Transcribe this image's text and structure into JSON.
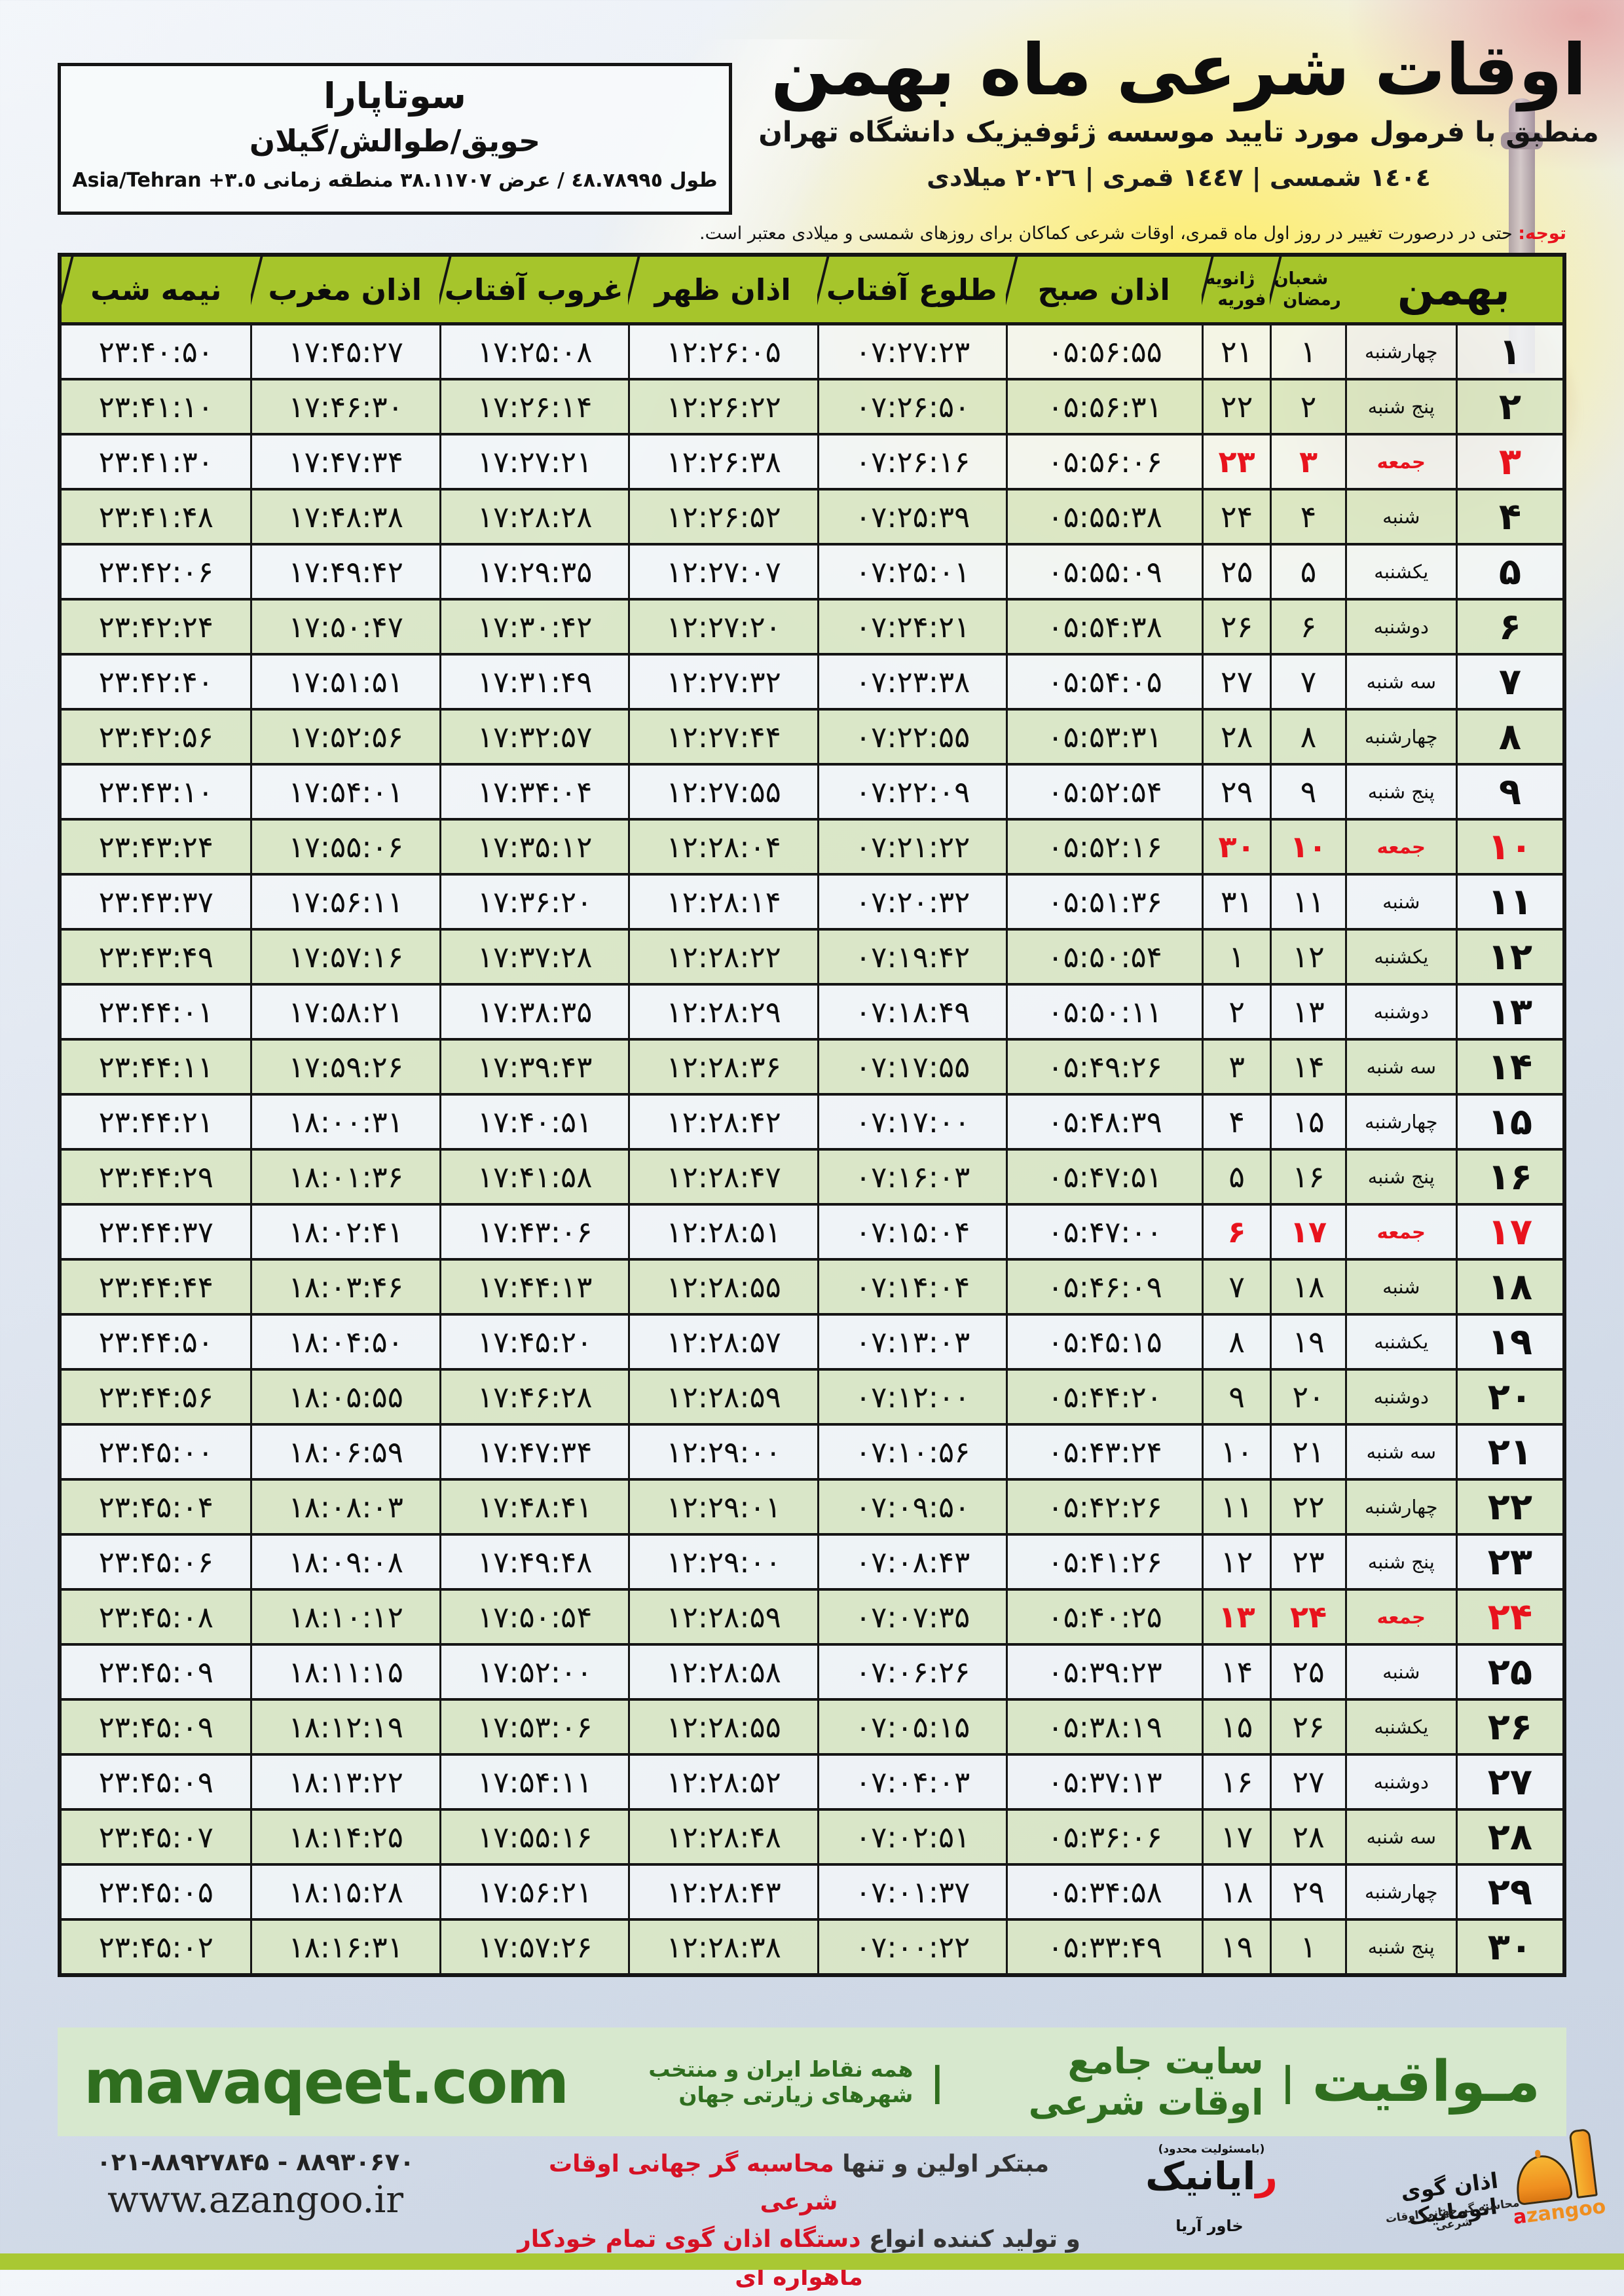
{
  "location": {
    "name": "سوتاپارا",
    "region": "حویق/طوالش/گیلان",
    "coords": "طول ٤٨.٧٨٩٩٥ / عرض ٣٨.١١٧٠٧ منطقه زمانی ٣.٥+ Asia/Tehran"
  },
  "header": {
    "title": "اوقات شرعی ماه بهمن",
    "subtitle": "منطبق با فرمول مورد تایید موسسه ژئوفیزیک دانشگاه تهران",
    "years": "١٤٠٤ شمسی | ١٤٤٧ قمری | ٢٠٢٦ میلادی"
  },
  "note": {
    "label": "توجه:",
    "text": " حتی در درصورت تغییر در روز اول ماه قمری، اوقات شرعی کماکان برای روزهای شمسی و میلادی معتبر است."
  },
  "table": {
    "headers": {
      "month": "بهمن",
      "lunar_top": "شعبان",
      "lunar_bottom": "رمضان",
      "greg_top": "ژانویه",
      "greg_bottom": "فوریه",
      "fajr": "اذان صبح",
      "sunrise": "طلوع آفتاب",
      "dhuhr": "اذان ظهر",
      "sunset": "غروب آفتاب",
      "maghrib": "اذان مغرب",
      "midnight": "نیمه شب"
    },
    "rows": [
      {
        "day": "۱",
        "weekday": "چهارشنبه",
        "lunar": "۱",
        "greg": "۲۱",
        "fajr": "۰۵:۵۶:۵۵",
        "sunrise": "۰۷:۲۷:۲۳",
        "dhuhr": "۱۲:۲۶:۰۵",
        "sunset": "۱۷:۲۵:۰۸",
        "maghrib": "۱۷:۴۵:۲۷",
        "midnight": "۲۳:۴۰:۵۰",
        "friday": false
      },
      {
        "day": "۲",
        "weekday": "پنج شنبه",
        "lunar": "۲",
        "greg": "۲۲",
        "fajr": "۰۵:۵۶:۳۱",
        "sunrise": "۰۷:۲۶:۵۰",
        "dhuhr": "۱۲:۲۶:۲۲",
        "sunset": "۱۷:۲۶:۱۴",
        "maghrib": "۱۷:۴۶:۳۰",
        "midnight": "۲۳:۴۱:۱۰",
        "friday": false
      },
      {
        "day": "۳",
        "weekday": "جمعه",
        "lunar": "۳",
        "greg": "۲۳",
        "fajr": "۰۵:۵۶:۰۶",
        "sunrise": "۰۷:۲۶:۱۶",
        "dhuhr": "۱۲:۲۶:۳۸",
        "sunset": "۱۷:۲۷:۲۱",
        "maghrib": "۱۷:۴۷:۳۴",
        "midnight": "۲۳:۴۱:۳۰",
        "friday": true
      },
      {
        "day": "۴",
        "weekday": "شنبه",
        "lunar": "۴",
        "greg": "۲۴",
        "fajr": "۰۵:۵۵:۳۸",
        "sunrise": "۰۷:۲۵:۳۹",
        "dhuhr": "۱۲:۲۶:۵۲",
        "sunset": "۱۷:۲۸:۲۸",
        "maghrib": "۱۷:۴۸:۳۸",
        "midnight": "۲۳:۴۱:۴۸",
        "friday": false
      },
      {
        "day": "۵",
        "weekday": "یکشنبه",
        "lunar": "۵",
        "greg": "۲۵",
        "fajr": "۰۵:۵۵:۰۹",
        "sunrise": "۰۷:۲۵:۰۱",
        "dhuhr": "۱۲:۲۷:۰۷",
        "sunset": "۱۷:۲۹:۳۵",
        "maghrib": "۱۷:۴۹:۴۲",
        "midnight": "۲۳:۴۲:۰۶",
        "friday": false
      },
      {
        "day": "۶",
        "weekday": "دوشنبه",
        "lunar": "۶",
        "greg": "۲۶",
        "fajr": "۰۵:۵۴:۳۸",
        "sunrise": "۰۷:۲۴:۲۱",
        "dhuhr": "۱۲:۲۷:۲۰",
        "sunset": "۱۷:۳۰:۴۲",
        "maghrib": "۱۷:۵۰:۴۷",
        "midnight": "۲۳:۴۲:۲۴",
        "friday": false
      },
      {
        "day": "۷",
        "weekday": "سه شنبه",
        "lunar": "۷",
        "greg": "۲۷",
        "fajr": "۰۵:۵۴:۰۵",
        "sunrise": "۰۷:۲۳:۳۸",
        "dhuhr": "۱۲:۲۷:۳۲",
        "sunset": "۱۷:۳۱:۴۹",
        "maghrib": "۱۷:۵۱:۵۱",
        "midnight": "۲۳:۴۲:۴۰",
        "friday": false
      },
      {
        "day": "۸",
        "weekday": "چهارشنبه",
        "lunar": "۸",
        "greg": "۲۸",
        "fajr": "۰۵:۵۳:۳۱",
        "sunrise": "۰۷:۲۲:۵۵",
        "dhuhr": "۱۲:۲۷:۴۴",
        "sunset": "۱۷:۳۲:۵۷",
        "maghrib": "۱۷:۵۲:۵۶",
        "midnight": "۲۳:۴۲:۵۶",
        "friday": false
      },
      {
        "day": "۹",
        "weekday": "پنج شنبه",
        "lunar": "۹",
        "greg": "۲۹",
        "fajr": "۰۵:۵۲:۵۴",
        "sunrise": "۰۷:۲۲:۰۹",
        "dhuhr": "۱۲:۲۷:۵۵",
        "sunset": "۱۷:۳۴:۰۴",
        "maghrib": "۱۷:۵۴:۰۱",
        "midnight": "۲۳:۴۳:۱۰",
        "friday": false
      },
      {
        "day": "۱۰",
        "weekday": "جمعه",
        "lunar": "۱۰",
        "greg": "۳۰",
        "fajr": "۰۵:۵۲:۱۶",
        "sunrise": "۰۷:۲۱:۲۲",
        "dhuhr": "۱۲:۲۸:۰۴",
        "sunset": "۱۷:۳۵:۱۲",
        "maghrib": "۱۷:۵۵:۰۶",
        "midnight": "۲۳:۴۳:۲۴",
        "friday": true
      },
      {
        "day": "۱۱",
        "weekday": "شنبه",
        "lunar": "۱۱",
        "greg": "۳۱",
        "fajr": "۰۵:۵۱:۳۶",
        "sunrise": "۰۷:۲۰:۳۲",
        "dhuhr": "۱۲:۲۸:۱۴",
        "sunset": "۱۷:۳۶:۲۰",
        "maghrib": "۱۷:۵۶:۱۱",
        "midnight": "۲۳:۴۳:۳۷",
        "friday": false
      },
      {
        "day": "۱۲",
        "weekday": "یکشنبه",
        "lunar": "۱۲",
        "greg": "۱",
        "fajr": "۰۵:۵۰:۵۴",
        "sunrise": "۰۷:۱۹:۴۲",
        "dhuhr": "۱۲:۲۸:۲۲",
        "sunset": "۱۷:۳۷:۲۸",
        "maghrib": "۱۷:۵۷:۱۶",
        "midnight": "۲۳:۴۳:۴۹",
        "friday": false
      },
      {
        "day": "۱۳",
        "weekday": "دوشنبه",
        "lunar": "۱۳",
        "greg": "۲",
        "fajr": "۰۵:۵۰:۱۱",
        "sunrise": "۰۷:۱۸:۴۹",
        "dhuhr": "۱۲:۲۸:۲۹",
        "sunset": "۱۷:۳۸:۳۵",
        "maghrib": "۱۷:۵۸:۲۱",
        "midnight": "۲۳:۴۴:۰۱",
        "friday": false
      },
      {
        "day": "۱۴",
        "weekday": "سه شنبه",
        "lunar": "۱۴",
        "greg": "۳",
        "fajr": "۰۵:۴۹:۲۶",
        "sunrise": "۰۷:۱۷:۵۵",
        "dhuhr": "۱۲:۲۸:۳۶",
        "sunset": "۱۷:۳۹:۴۳",
        "maghrib": "۱۷:۵۹:۲۶",
        "midnight": "۲۳:۴۴:۱۱",
        "friday": false
      },
      {
        "day": "۱۵",
        "weekday": "چهارشنبه",
        "lunar": "۱۵",
        "greg": "۴",
        "fajr": "۰۵:۴۸:۳۹",
        "sunrise": "۰۷:۱۷:۰۰",
        "dhuhr": "۱۲:۲۸:۴۲",
        "sunset": "۱۷:۴۰:۵۱",
        "maghrib": "۱۸:۰۰:۳۱",
        "midnight": "۲۳:۴۴:۲۱",
        "friday": false
      },
      {
        "day": "۱۶",
        "weekday": "پنج شنبه",
        "lunar": "۱۶",
        "greg": "۵",
        "fajr": "۰۵:۴۷:۵۱",
        "sunrise": "۰۷:۱۶:۰۳",
        "dhuhr": "۱۲:۲۸:۴۷",
        "sunset": "۱۷:۴۱:۵۸",
        "maghrib": "۱۸:۰۱:۳۶",
        "midnight": "۲۳:۴۴:۲۹",
        "friday": false
      },
      {
        "day": "۱۷",
        "weekday": "جمعه",
        "lunar": "۱۷",
        "greg": "۶",
        "fajr": "۰۵:۴۷:۰۰",
        "sunrise": "۰۷:۱۵:۰۴",
        "dhuhr": "۱۲:۲۸:۵۱",
        "sunset": "۱۷:۴۳:۰۶",
        "maghrib": "۱۸:۰۲:۴۱",
        "midnight": "۲۳:۴۴:۳۷",
        "friday": true
      },
      {
        "day": "۱۸",
        "weekday": "شنبه",
        "lunar": "۱۸",
        "greg": "۷",
        "fajr": "۰۵:۴۶:۰۹",
        "sunrise": "۰۷:۱۴:۰۴",
        "dhuhr": "۱۲:۲۸:۵۵",
        "sunset": "۱۷:۴۴:۱۳",
        "maghrib": "۱۸:۰۳:۴۶",
        "midnight": "۲۳:۴۴:۴۴",
        "friday": false
      },
      {
        "day": "۱۹",
        "weekday": "یکشنبه",
        "lunar": "۱۹",
        "greg": "۸",
        "fajr": "۰۵:۴۵:۱۵",
        "sunrise": "۰۷:۱۳:۰۳",
        "dhuhr": "۱۲:۲۸:۵۷",
        "sunset": "۱۷:۴۵:۲۰",
        "maghrib": "۱۸:۰۴:۵۰",
        "midnight": "۲۳:۴۴:۵۰",
        "friday": false
      },
      {
        "day": "۲۰",
        "weekday": "دوشنبه",
        "lunar": "۲۰",
        "greg": "۹",
        "fajr": "۰۵:۴۴:۲۰",
        "sunrise": "۰۷:۱۲:۰۰",
        "dhuhr": "۱۲:۲۸:۵۹",
        "sunset": "۱۷:۴۶:۲۸",
        "maghrib": "۱۸:۰۵:۵۵",
        "midnight": "۲۳:۴۴:۵۶",
        "friday": false
      },
      {
        "day": "۲۱",
        "weekday": "سه شنبه",
        "lunar": "۲۱",
        "greg": "۱۰",
        "fajr": "۰۵:۴۳:۲۴",
        "sunrise": "۰۷:۱۰:۵۶",
        "dhuhr": "۱۲:۲۹:۰۰",
        "sunset": "۱۷:۴۷:۳۴",
        "maghrib": "۱۸:۰۶:۵۹",
        "midnight": "۲۳:۴۵:۰۰",
        "friday": false
      },
      {
        "day": "۲۲",
        "weekday": "چهارشنبه",
        "lunar": "۲۲",
        "greg": "۱۱",
        "fajr": "۰۵:۴۲:۲۶",
        "sunrise": "۰۷:۰۹:۵۰",
        "dhuhr": "۱۲:۲۹:۰۱",
        "sunset": "۱۷:۴۸:۴۱",
        "maghrib": "۱۸:۰۸:۰۳",
        "midnight": "۲۳:۴۵:۰۴",
        "friday": false
      },
      {
        "day": "۲۳",
        "weekday": "پنج شنبه",
        "lunar": "۲۳",
        "greg": "۱۲",
        "fajr": "۰۵:۴۱:۲۶",
        "sunrise": "۰۷:۰۸:۴۳",
        "dhuhr": "۱۲:۲۹:۰۰",
        "sunset": "۱۷:۴۹:۴۸",
        "maghrib": "۱۸:۰۹:۰۸",
        "midnight": "۲۳:۴۵:۰۶",
        "friday": false
      },
      {
        "day": "۲۴",
        "weekday": "جمعه",
        "lunar": "۲۴",
        "greg": "۱۳",
        "fajr": "۰۵:۴۰:۲۵",
        "sunrise": "۰۷:۰۷:۳۵",
        "dhuhr": "۱۲:۲۸:۵۹",
        "sunset": "۱۷:۵۰:۵۴",
        "maghrib": "۱۸:۱۰:۱۲",
        "midnight": "۲۳:۴۵:۰۸",
        "friday": true
      },
      {
        "day": "۲۵",
        "weekday": "شنبه",
        "lunar": "۲۵",
        "greg": "۱۴",
        "fajr": "۰۵:۳۹:۲۳",
        "sunrise": "۰۷:۰۶:۲۶",
        "dhuhr": "۱۲:۲۸:۵۸",
        "sunset": "۱۷:۵۲:۰۰",
        "maghrib": "۱۸:۱۱:۱۵",
        "midnight": "۲۳:۴۵:۰۹",
        "friday": false
      },
      {
        "day": "۲۶",
        "weekday": "یکشنبه",
        "lunar": "۲۶",
        "greg": "۱۵",
        "fajr": "۰۵:۳۸:۱۹",
        "sunrise": "۰۷:۰۵:۱۵",
        "dhuhr": "۱۲:۲۸:۵۵",
        "sunset": "۱۷:۵۳:۰۶",
        "maghrib": "۱۸:۱۲:۱۹",
        "midnight": "۲۳:۴۵:۰۹",
        "friday": false
      },
      {
        "day": "۲۷",
        "weekday": "دوشنبه",
        "lunar": "۲۷",
        "greg": "۱۶",
        "fajr": "۰۵:۳۷:۱۳",
        "sunrise": "۰۷:۰۴:۰۳",
        "dhuhr": "۱۲:۲۸:۵۲",
        "sunset": "۱۷:۵۴:۱۱",
        "maghrib": "۱۸:۱۳:۲۲",
        "midnight": "۲۳:۴۵:۰۹",
        "friday": false
      },
      {
        "day": "۲۸",
        "weekday": "سه شنبه",
        "lunar": "۲۸",
        "greg": "۱۷",
        "fajr": "۰۵:۳۶:۰۶",
        "sunrise": "۰۷:۰۲:۵۱",
        "dhuhr": "۱۲:۲۸:۴۸",
        "sunset": "۱۷:۵۵:۱۶",
        "maghrib": "۱۸:۱۴:۲۵",
        "midnight": "۲۳:۴۵:۰۷",
        "friday": false
      },
      {
        "day": "۲۹",
        "weekday": "چهارشنبه",
        "lunar": "۲۹",
        "greg": "۱۸",
        "fajr": "۰۵:۳۴:۵۸",
        "sunrise": "۰۷:۰۱:۳۷",
        "dhuhr": "۱۲:۲۸:۴۳",
        "sunset": "۱۷:۵۶:۲۱",
        "maghrib": "۱۸:۱۵:۲۸",
        "midnight": "۲۳:۴۵:۰۵",
        "friday": false
      },
      {
        "day": "۳۰",
        "weekday": "پنج شنبه",
        "lunar": "۱",
        "greg": "۱۹",
        "fajr": "۰۵:۳۳:۴۹",
        "sunrise": "۰۷:۰۰:۲۲",
        "dhuhr": "۱۲:۲۸:۳۸",
        "sunset": "۱۷:۵۷:۲۶",
        "maghrib": "۱۸:۱۶:۳۱",
        "midnight": "۲۳:۴۵:۰۲",
        "friday": false
      }
    ]
  },
  "footer": {
    "band": {
      "brand": "مـواقیت",
      "sep": "|",
      "tagline1": "سایت جامع اوقات شرعی",
      "tagline2": "همه نقاط ایران و منتخب شهرهای زیارتی جهان",
      "site_en": "mavaqeet.com"
    },
    "bottom": {
      "phone": "۰۲۱-۸۸۹۲۷۸۴۵ - ۸۸۹۳۰۶۷۰",
      "website": "www.azangoo.ir",
      "line1_black": "مبتکر اولین و تنها ",
      "line1_red": "محاسبه گر جهانی اوقات شرعی",
      "line2_black": "و تولید کننده انواع ",
      "line2_red": "دستگاه اذان گوی تمام خودکار ماهواره ای",
      "rayanik_note": "(بامسئولیت محدود)",
      "rayanik_initial": "ر",
      "rayanik_rest": "ایانیک",
      "rayanik_sub": "خاور آریا",
      "azangoo_title": "اذان گوی اتوماتیک",
      "azangoo_sub": "محاسبه گر جهانی اوقات شرعی",
      "azangoo_latin_a": "a",
      "azangoo_latin_rest": "zangoo"
    },
    "colors": {
      "header_green": "#a6c52b",
      "row_green": "#d9e6c3",
      "friday_red": "#e8131d",
      "band_green": "#d7e8ce",
      "band_text": "#2f6e1f",
      "lime_strip": "#a9c833"
    }
  }
}
